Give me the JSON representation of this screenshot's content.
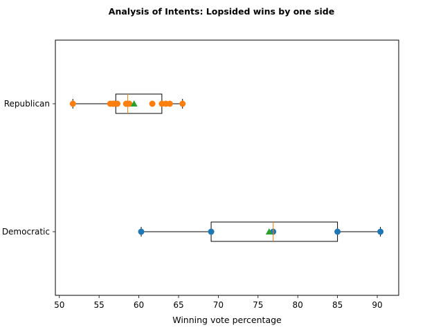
{
  "chart_data": {
    "type": "boxplot",
    "title": "Analysis of Intents: Lopsided wins by one side",
    "xlabel": "Winning vote percentage",
    "ylabel": "",
    "xlim": [
      49.5,
      92.7
    ],
    "x_ticks": [
      50,
      55,
      60,
      65,
      70,
      75,
      80,
      85,
      90
    ],
    "grid": false,
    "orientation": "horizontal",
    "groups": [
      {
        "name": "Democratic",
        "label": "Democratic",
        "color": "#1f77b4",
        "box": {
          "whisker_low": 60.3,
          "q1": 69.1,
          "median": 76.9,
          "q3": 85.0,
          "whisker_high": 90.4
        },
        "mean": 76.4,
        "points": [
          60.3,
          69.1,
          76.9,
          85.0,
          90.4
        ]
      },
      {
        "name": "Republican",
        "label": "Republican",
        "color": "#ff7f0e",
        "box": {
          "whisker_low": 51.7,
          "q1": 57.1,
          "median": 58.6,
          "q3": 62.9,
          "whisker_high": 65.5
        },
        "mean": 59.4,
        "points": [
          51.7,
          56.4,
          56.7,
          56.9,
          57.3,
          58.4,
          58.6,
          58.8,
          61.7,
          62.9,
          63.4,
          63.9,
          65.5
        ]
      }
    ],
    "mean_color": "#2ca02c",
    "median_color": "#ff7f0e"
  }
}
